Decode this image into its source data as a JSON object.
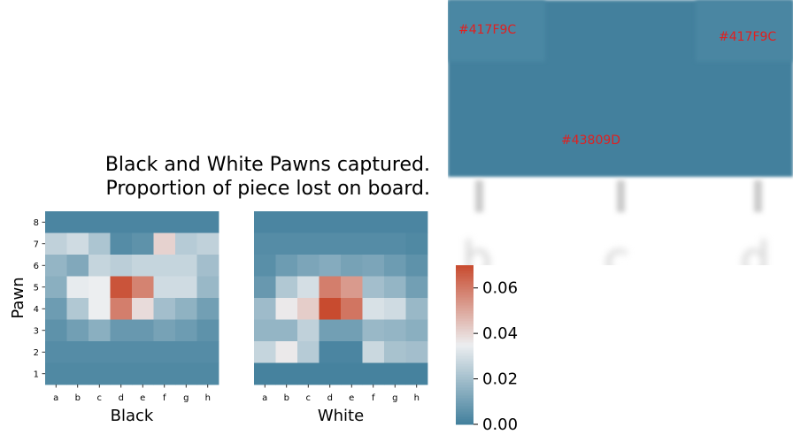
{
  "title_lines": [
    "Black and White Pawns captured.",
    "Proportion of piece lost on board."
  ],
  "inset": {
    "color_labels": [
      "#417F9C",
      "#417F9C",
      "#43809D"
    ],
    "tick_letters": [
      "b",
      "c",
      "d"
    ]
  },
  "chart_data": {
    "type": "heatmap",
    "title": "Black and White Pawns captured.\nProportion of piece lost on board.",
    "ylabel": "Pawn",
    "x_ticks": [
      "a",
      "b",
      "c",
      "d",
      "e",
      "f",
      "g",
      "h"
    ],
    "y_ticks": [
      "8",
      "7",
      "6",
      "5",
      "4",
      "3",
      "2",
      "1"
    ],
    "colorbar": {
      "ticks": [
        "0.00",
        "0.02",
        "0.04",
        "0.06"
      ],
      "range": [
        0.0,
        0.07
      ],
      "palette": [
        "#417F9C",
        "#ECEEF0",
        "#C84B2F"
      ]
    },
    "panels": [
      {
        "name": "Black",
        "xlabel": "Black",
        "rows": [
          [
            0.002,
            0.002,
            0.002,
            0.002,
            0.002,
            0.002,
            0.002,
            0.002
          ],
          [
            0.026,
            0.029,
            0.022,
            0.004,
            0.006,
            0.041,
            0.024,
            0.026
          ],
          [
            0.017,
            0.013,
            0.027,
            0.025,
            0.027,
            0.027,
            0.027,
            0.02
          ],
          [
            0.015,
            0.034,
            0.035,
            0.068,
            0.058,
            0.029,
            0.029,
            0.018
          ],
          [
            0.009,
            0.023,
            0.035,
            0.059,
            0.039,
            0.02,
            0.016,
            0.01
          ],
          [
            0.006,
            0.01,
            0.015,
            0.008,
            0.008,
            0.011,
            0.009,
            0.006
          ],
          [
            0.004,
            0.004,
            0.004,
            0.004,
            0.004,
            0.004,
            0.004,
            0.004
          ],
          [
            0.003,
            0.003,
            0.003,
            0.003,
            0.003,
            0.003,
            0.003,
            0.003
          ]
        ]
      },
      {
        "name": "White",
        "xlabel": "White",
        "rows": [
          [
            0.002,
            0.002,
            0.002,
            0.002,
            0.002,
            0.002,
            0.002,
            0.002
          ],
          [
            0.004,
            0.004,
            0.004,
            0.004,
            0.004,
            0.004,
            0.004,
            0.003
          ],
          [
            0.005,
            0.009,
            0.012,
            0.014,
            0.011,
            0.012,
            0.009,
            0.006
          ],
          [
            0.008,
            0.023,
            0.03,
            0.059,
            0.053,
            0.02,
            0.017,
            0.01
          ],
          [
            0.019,
            0.036,
            0.042,
            0.076,
            0.061,
            0.031,
            0.029,
            0.018
          ],
          [
            0.017,
            0.017,
            0.026,
            0.01,
            0.01,
            0.018,
            0.017,
            0.015
          ],
          [
            0.027,
            0.036,
            0.024,
            0.002,
            0.002,
            0.028,
            0.021,
            0.02
          ],
          [
            0.001,
            0.001,
            0.001,
            0.001,
            0.001,
            0.001,
            0.001,
            0.001
          ]
        ]
      }
    ]
  }
}
